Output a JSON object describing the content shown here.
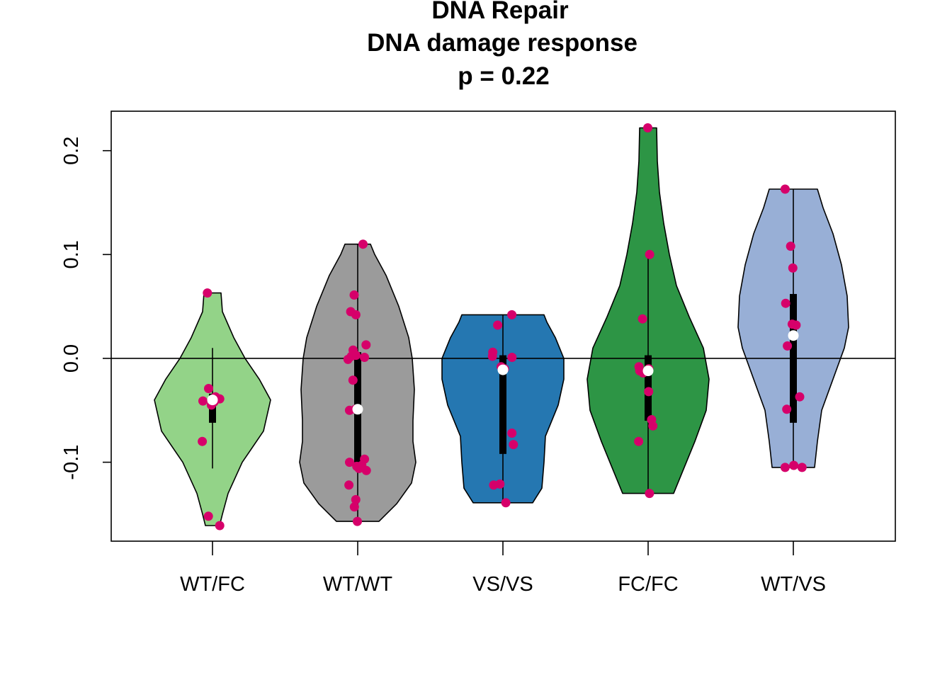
{
  "chart_data": {
    "type": "violin",
    "title": [
      "DNA Repair",
      "DNA damage response",
      "p = 0.22"
    ],
    "xlabel": "",
    "ylabel": "",
    "ylim": [
      -0.176,
      0.238
    ],
    "yticks": [
      -0.1,
      0.0,
      0.1,
      0.2
    ],
    "ytick_labels": [
      "-0.1",
      "0.0",
      "0.1",
      "0.2"
    ],
    "reference_line": 0.0,
    "categories": [
      "WT/FC",
      "WT/WT",
      "VS/VS",
      "FC/FC",
      "WT/VS"
    ],
    "point_color": "#D6006A",
    "median_color": "#FFFFFF",
    "groups": [
      {
        "name": "WT/FC",
        "color": "#93D388",
        "min": -0.161,
        "max": 0.063,
        "q1": -0.062,
        "q3": -0.034,
        "median": -0.04,
        "whisker_low": -0.106,
        "whisker_high": 0.01,
        "density": [
          [
            -0.161,
            0.1
          ],
          [
            -0.15,
            0.14
          ],
          [
            -0.13,
            0.22
          ],
          [
            -0.1,
            0.42
          ],
          [
            -0.07,
            0.72
          ],
          [
            -0.04,
            0.82
          ],
          [
            -0.02,
            0.66
          ],
          [
            0.0,
            0.46
          ],
          [
            0.02,
            0.3
          ],
          [
            0.045,
            0.14
          ],
          [
            0.063,
            0.12
          ]
        ],
        "points": [
          0.063,
          -0.029,
          -0.037,
          -0.039,
          -0.041,
          -0.042,
          -0.045,
          -0.08,
          -0.152,
          -0.161
        ]
      },
      {
        "name": "WT/WT",
        "color": "#9B9B9B",
        "min": -0.157,
        "max": 0.11,
        "q1": -0.1,
        "q3": 0.006,
        "median": -0.049,
        "whisker_low": -0.157,
        "whisker_high": 0.11,
        "density": [
          [
            -0.157,
            0.3
          ],
          [
            -0.14,
            0.55
          ],
          [
            -0.12,
            0.76
          ],
          [
            -0.1,
            0.82
          ],
          [
            -0.08,
            0.78
          ],
          [
            -0.06,
            0.78
          ],
          [
            -0.03,
            0.8
          ],
          [
            0.0,
            0.77
          ],
          [
            0.02,
            0.72
          ],
          [
            0.05,
            0.58
          ],
          [
            0.08,
            0.4
          ],
          [
            0.1,
            0.24
          ],
          [
            0.11,
            0.18
          ]
        ],
        "points": [
          0.11,
          0.061,
          0.045,
          0.042,
          0.013,
          0.008,
          0.003,
          0.002,
          0.001,
          -0.001,
          -0.021,
          -0.049,
          -0.05,
          -0.097,
          -0.1,
          -0.103,
          -0.104,
          -0.106,
          -0.108,
          -0.122,
          -0.136,
          -0.143,
          -0.157
        ]
      },
      {
        "name": "VS/VS",
        "color": "#2577B1",
        "min": -0.139,
        "max": 0.042,
        "q1": -0.092,
        "q3": 0.003,
        "median": -0.011,
        "whisker_low": -0.139,
        "whisker_high": 0.042,
        "density": [
          [
            -0.139,
            0.42
          ],
          [
            -0.125,
            0.55
          ],
          [
            -0.1,
            0.58
          ],
          [
            -0.075,
            0.6
          ],
          [
            -0.045,
            0.78
          ],
          [
            -0.02,
            0.86
          ],
          [
            0.0,
            0.86
          ],
          [
            0.02,
            0.74
          ],
          [
            0.035,
            0.62
          ],
          [
            0.042,
            0.58
          ]
        ],
        "points": [
          0.042,
          0.032,
          0.006,
          0.002,
          0.001,
          -0.008,
          -0.01,
          -0.011,
          -0.072,
          -0.083,
          -0.121,
          -0.122,
          -0.139
        ]
      },
      {
        "name": "FC/FC",
        "color": "#2D9545",
        "min": -0.13,
        "max": 0.222,
        "q1": -0.06,
        "q3": 0.003,
        "median": -0.012,
        "whisker_low": -0.13,
        "whisker_high": 0.1,
        "density": [
          [
            -0.13,
            0.36
          ],
          [
            -0.11,
            0.48
          ],
          [
            -0.08,
            0.66
          ],
          [
            -0.05,
            0.82
          ],
          [
            -0.02,
            0.86
          ],
          [
            0.01,
            0.78
          ],
          [
            0.04,
            0.58
          ],
          [
            0.07,
            0.4
          ],
          [
            0.1,
            0.3
          ],
          [
            0.13,
            0.22
          ],
          [
            0.16,
            0.16
          ],
          [
            0.19,
            0.13
          ],
          [
            0.222,
            0.12
          ]
        ],
        "points": [
          0.222,
          0.1,
          0.038,
          -0.008,
          -0.01,
          -0.012,
          -0.014,
          -0.032,
          -0.059,
          -0.065,
          -0.08,
          -0.13
        ]
      },
      {
        "name": "WT/VS",
        "color": "#98AFD6",
        "min": -0.105,
        "max": 0.163,
        "q1": -0.062,
        "q3": 0.062,
        "median": 0.022,
        "whisker_low": -0.105,
        "whisker_high": 0.163,
        "density": [
          [
            -0.105,
            0.3
          ],
          [
            -0.08,
            0.34
          ],
          [
            -0.05,
            0.4
          ],
          [
            -0.02,
            0.56
          ],
          [
            0.01,
            0.72
          ],
          [
            0.03,
            0.78
          ],
          [
            0.06,
            0.76
          ],
          [
            0.09,
            0.68
          ],
          [
            0.12,
            0.56
          ],
          [
            0.145,
            0.42
          ],
          [
            0.163,
            0.34
          ]
        ],
        "points": [
          0.163,
          0.108,
          0.087,
          0.053,
          0.033,
          0.032,
          0.012,
          -0.037,
          -0.049,
          -0.103,
          -0.105,
          -0.105
        ]
      }
    ]
  }
}
